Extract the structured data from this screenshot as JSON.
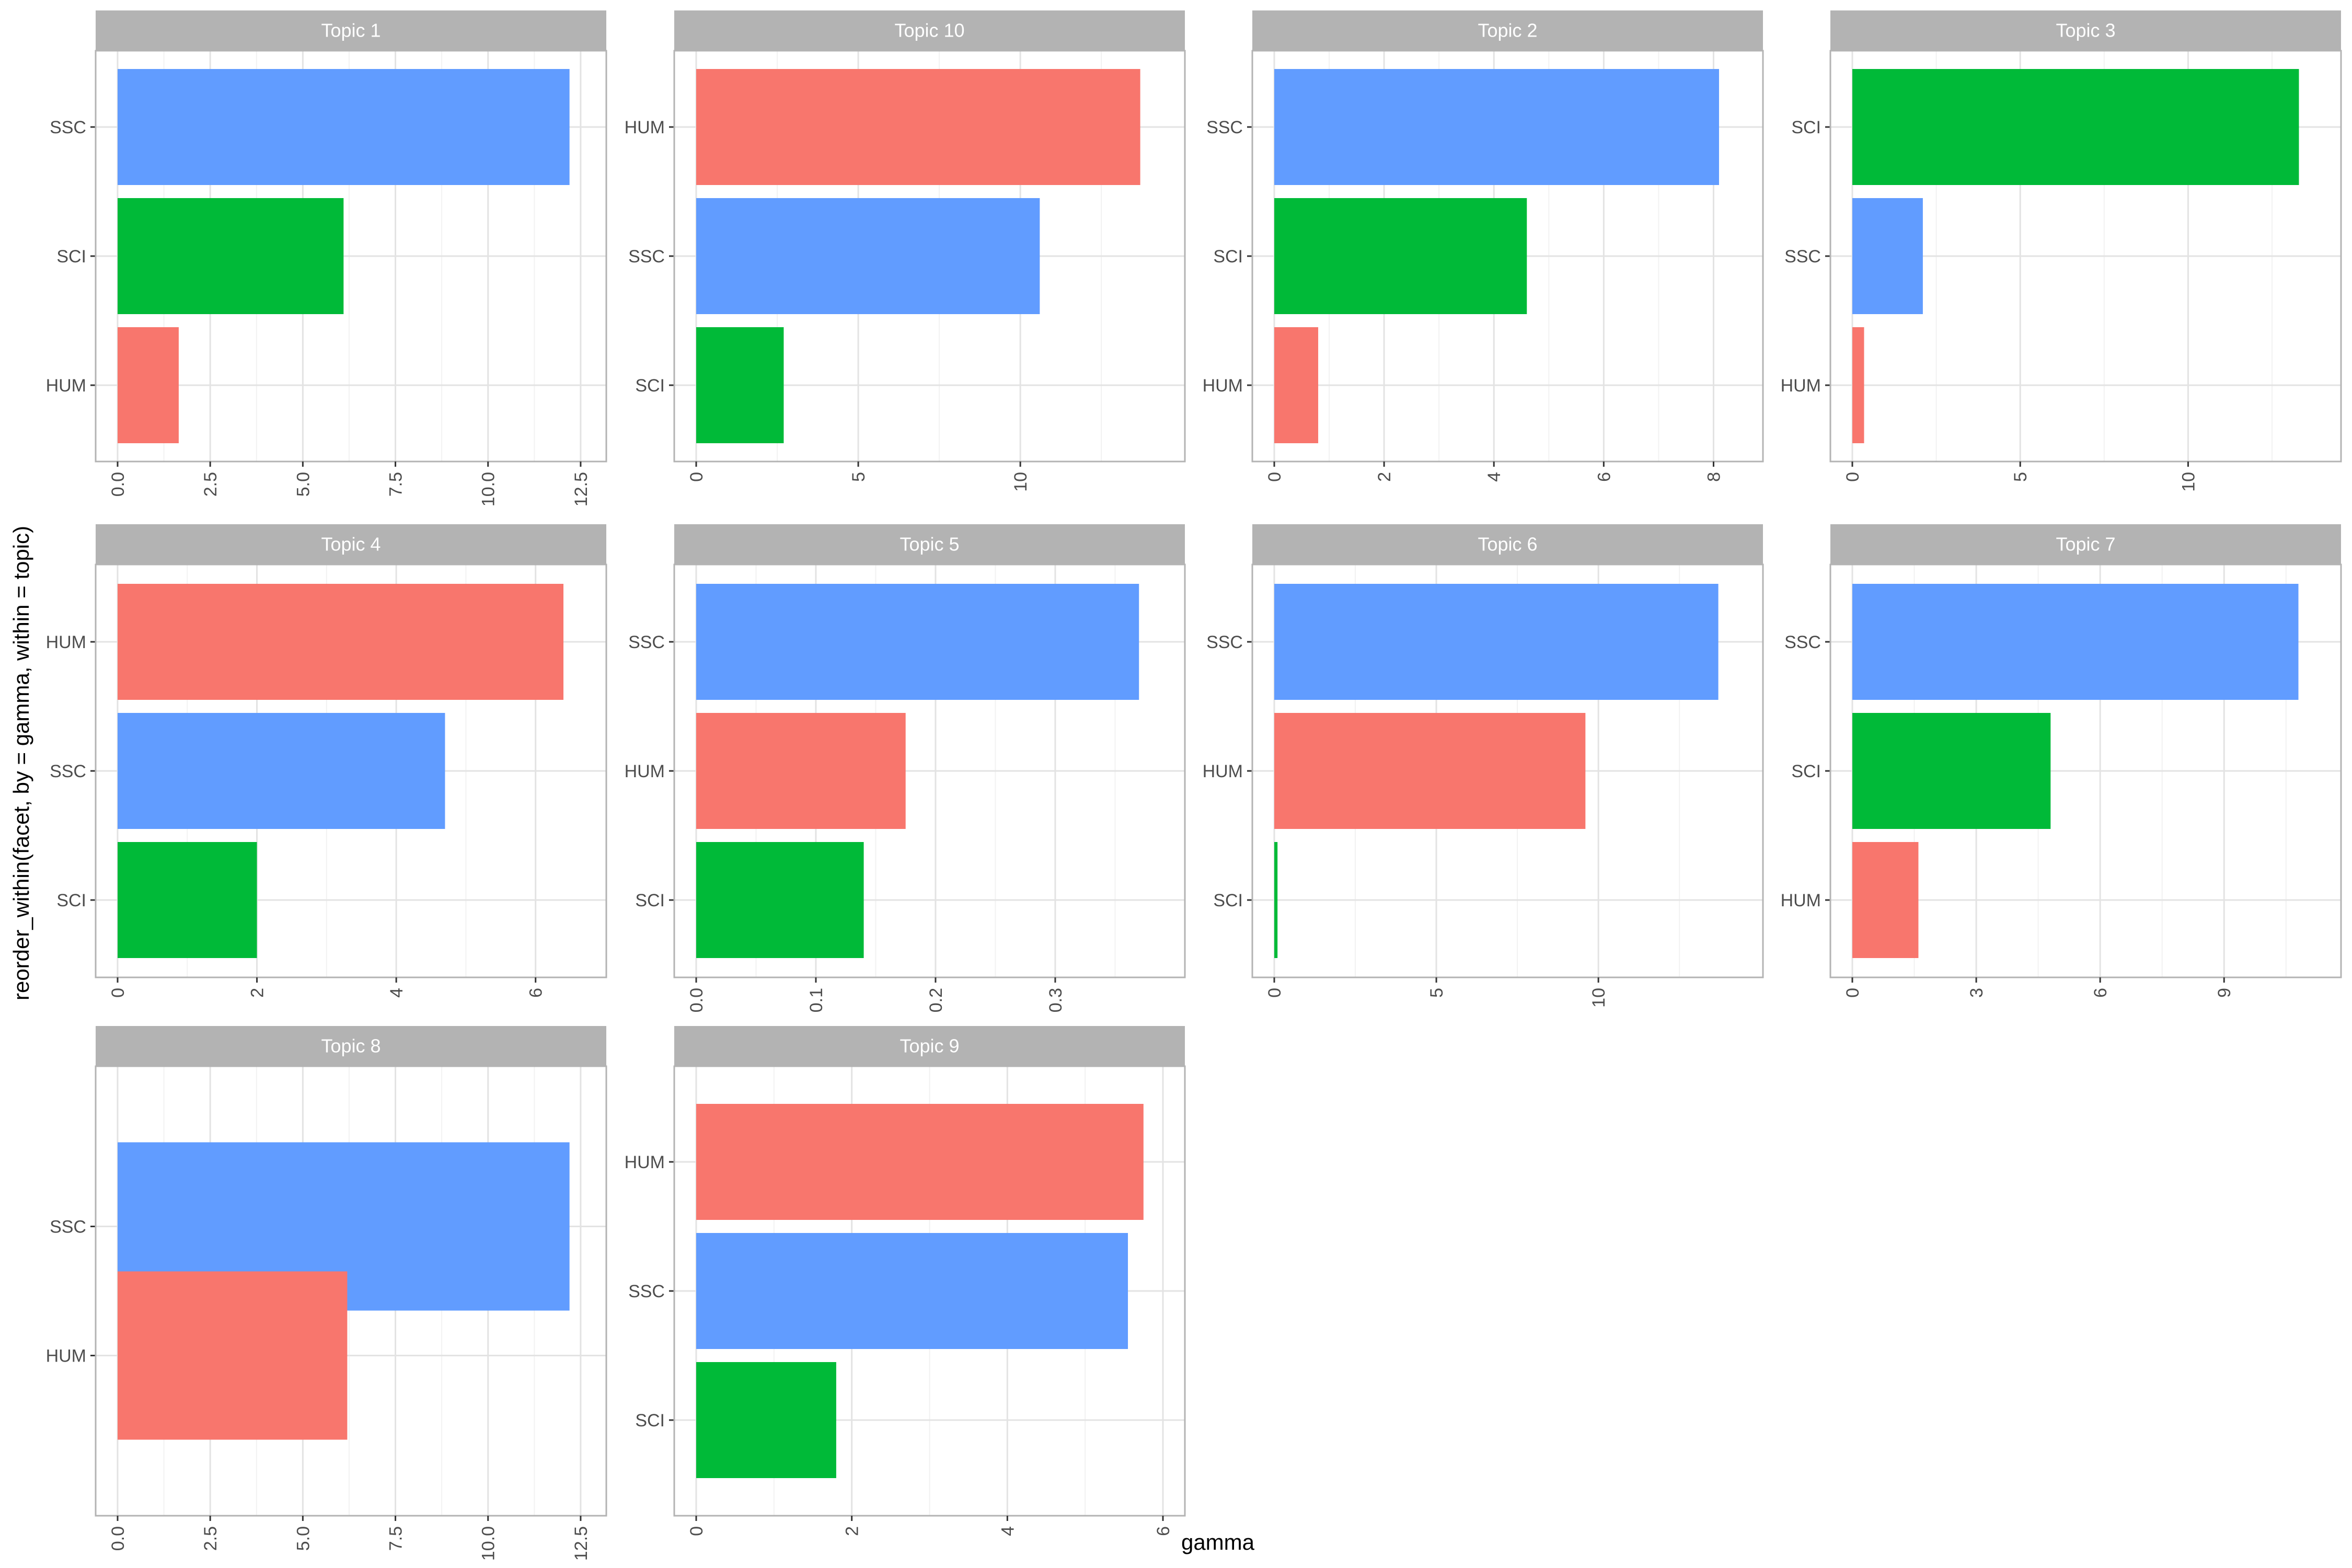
{
  "chart_data": {
    "type": "bar",
    "orientation": "horizontal",
    "xlabel": "gamma",
    "ylabel": "reorder_within(facet, by = gamma, within = topic)",
    "grid": true,
    "facet_columns": 4,
    "colors": {
      "HUM": "#F8766D",
      "SCI": "#00BA38",
      "SSC": "#619CFF"
    },
    "facets": [
      {
        "title": "Topic 1",
        "xlim": [
          0,
          12.6
        ],
        "ticks": [
          0,
          2.5,
          5,
          7.5,
          10,
          12.5
        ],
        "tick_labels": [
          "0.0",
          "2.5",
          "5.0",
          "7.5",
          "10.0",
          "12.5"
        ],
        "bars": [
          {
            "category": "SSC",
            "value": 12.2
          },
          {
            "category": "SCI",
            "value": 6.1
          },
          {
            "category": "HUM",
            "value": 1.65
          }
        ]
      },
      {
        "title": "Topic 10",
        "xlim": [
          0,
          14.4
        ],
        "ticks": [
          0,
          5,
          10
        ],
        "tick_labels": [
          "0",
          "5",
          "10"
        ],
        "bars": [
          {
            "category": "HUM",
            "value": 13.7
          },
          {
            "category": "SSC",
            "value": 10.6
          },
          {
            "category": "SCI",
            "value": 2.7
          }
        ]
      },
      {
        "title": "Topic 2",
        "xlim": [
          0,
          8.5
        ],
        "ticks": [
          0,
          2,
          4,
          6,
          8
        ],
        "tick_labels": [
          "0",
          "2",
          "4",
          "6",
          "8"
        ],
        "bars": [
          {
            "category": "SSC",
            "value": 8.1
          },
          {
            "category": "SCI",
            "value": 4.6
          },
          {
            "category": "HUM",
            "value": 0.8
          }
        ]
      },
      {
        "title": "Topic 3",
        "xlim": [
          0,
          13.9
        ],
        "ticks": [
          0,
          5,
          10
        ],
        "tick_labels": [
          "0",
          "5",
          "10"
        ],
        "bars": [
          {
            "category": "SCI",
            "value": 13.3
          },
          {
            "category": "SSC",
            "value": 2.1
          },
          {
            "category": "HUM",
            "value": 0.35
          }
        ]
      },
      {
        "title": "Topic 4",
        "xlim": [
          0,
          6.7
        ],
        "ticks": [
          0,
          2,
          4,
          6
        ],
        "tick_labels": [
          "0",
          "2",
          "4",
          "6"
        ],
        "bars": [
          {
            "category": "HUM",
            "value": 6.4
          },
          {
            "category": "SSC",
            "value": 4.7
          },
          {
            "category": "SCI",
            "value": 2.0
          }
        ]
      },
      {
        "title": "Topic 5",
        "xlim": [
          0,
          0.39
        ],
        "ticks": [
          0,
          0.1,
          0.2,
          0.3
        ],
        "tick_labels": [
          "0.0",
          "0.1",
          "0.2",
          "0.3"
        ],
        "bars": [
          {
            "category": "SSC",
            "value": 0.37
          },
          {
            "category": "HUM",
            "value": 0.175
          },
          {
            "category": "SCI",
            "value": 0.14
          }
        ]
      },
      {
        "title": "Topic 6",
        "xlim": [
          0,
          14.4
        ],
        "ticks": [
          0,
          5,
          10
        ],
        "tick_labels": [
          "0",
          "5",
          "10"
        ],
        "bars": [
          {
            "category": "SSC",
            "value": 13.7
          },
          {
            "category": "HUM",
            "value": 9.6
          },
          {
            "category": "SCI",
            "value": 0.1
          }
        ]
      },
      {
        "title": "Topic 7",
        "xlim": [
          0,
          11.3
        ],
        "ticks": [
          0,
          3,
          6,
          9
        ],
        "tick_labels": [
          "0",
          "3",
          "6",
          "9"
        ],
        "bars": [
          {
            "category": "SSC",
            "value": 10.8
          },
          {
            "category": "SCI",
            "value": 4.8
          },
          {
            "category": "HUM",
            "value": 1.6
          }
        ]
      },
      {
        "title": "Topic 8",
        "xlim": [
          0,
          12.6
        ],
        "ticks": [
          0,
          2.5,
          5,
          7.5,
          10,
          12.5
        ],
        "tick_labels": [
          "0.0",
          "2.5",
          "5.0",
          "7.5",
          "10.0",
          "12.5"
        ],
        "bars": [
          {
            "category": "SSC",
            "value": 12.2
          },
          {
            "category": "HUM",
            "value": 6.2
          }
        ]
      },
      {
        "title": "Topic 9",
        "xlim": [
          0,
          6.0
        ],
        "ticks": [
          0,
          2,
          4,
          6
        ],
        "tick_labels": [
          "0",
          "2",
          "4",
          "6"
        ],
        "bars": [
          {
            "category": "HUM",
            "value": 5.75
          },
          {
            "category": "SSC",
            "value": 5.55
          },
          {
            "category": "SCI",
            "value": 1.8
          }
        ]
      }
    ]
  }
}
